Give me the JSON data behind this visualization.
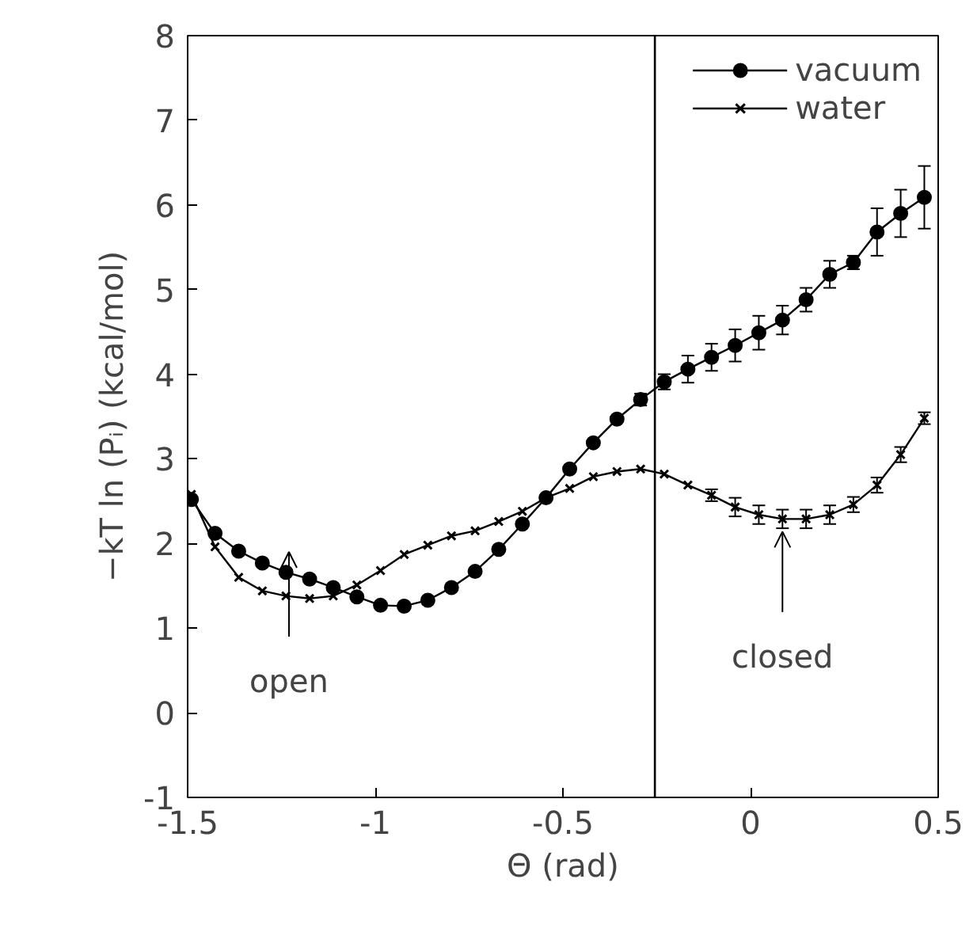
{
  "chart_data": {
    "type": "line",
    "xlabel": "Θ (rad)",
    "ylabel": "−kT ln (Pᵢ) (kcal/mol)",
    "x": [
      -1.49,
      -1.427,
      -1.364,
      -1.301,
      -1.238,
      -1.175,
      -1.112,
      -1.049,
      -0.986,
      -0.923,
      -0.86,
      -0.797,
      -0.734,
      -0.671,
      -0.608,
      -0.545,
      -0.482,
      -0.419,
      -0.356,
      -0.293,
      -0.23,
      -0.167,
      -0.104,
      -0.041,
      0.022,
      0.085,
      0.148,
      0.211,
      0.274,
      0.337,
      0.4,
      0.463
    ],
    "series": [
      {
        "name": "vacuum",
        "color": "#000000",
        "marker": "circle",
        "values": [
          2.52,
          2.12,
          1.91,
          1.77,
          1.66,
          1.58,
          1.48,
          1.37,
          1.27,
          1.26,
          1.33,
          1.48,
          1.67,
          1.93,
          2.23,
          2.54,
          2.88,
          3.19,
          3.47,
          3.7,
          3.91,
          4.06,
          4.2,
          4.34,
          4.49,
          4.64,
          4.88,
          5.18,
          5.32,
          5.68,
          5.9,
          6.09
        ],
        "errors": [
          null,
          null,
          null,
          null,
          null,
          null,
          null,
          null,
          null,
          null,
          null,
          null,
          null,
          null,
          null,
          null,
          null,
          null,
          null,
          0.07,
          0.09,
          0.16,
          0.16,
          0.19,
          0.2,
          0.17,
          0.14,
          0.16,
          0.08,
          0.28,
          0.28,
          0.37
        ]
      },
      {
        "name": "water",
        "color": "#000000",
        "marker": "cross",
        "values": [
          2.58,
          1.96,
          1.6,
          1.44,
          1.38,
          1.35,
          1.38,
          1.51,
          1.68,
          1.87,
          1.98,
          2.09,
          2.15,
          2.26,
          2.38,
          2.54,
          2.65,
          2.79,
          2.85,
          2.88,
          2.82,
          2.69,
          2.57,
          2.43,
          2.34,
          2.29,
          2.29,
          2.34,
          2.46,
          2.69,
          3.05,
          3.48
        ],
        "errors": [
          null,
          null,
          null,
          null,
          null,
          null,
          null,
          null,
          null,
          null,
          null,
          null,
          null,
          null,
          null,
          null,
          null,
          null,
          null,
          null,
          null,
          null,
          0.07,
          0.11,
          0.11,
          0.11,
          0.11,
          0.11,
          0.09,
          0.09,
          0.09,
          0.07
        ]
      }
    ],
    "xlim": [
      -1.5,
      0.5
    ],
    "ylim": [
      -1,
      8
    ],
    "xticks": [
      -1.5,
      -1,
      -0.5,
      0,
      0.5
    ],
    "yticks": [
      -1,
      0,
      1,
      2,
      3,
      4,
      5,
      6,
      7,
      8
    ],
    "ref_lines": [
      {
        "axis": "x",
        "value": -0.255,
        "color": "#000000"
      }
    ],
    "annotations": [
      "open",
      {
        "text": "closed",
        "x": 0.085,
        "y": 2.29
      }
    ],
    "grid": false,
    "legend": "top right"
  }
}
